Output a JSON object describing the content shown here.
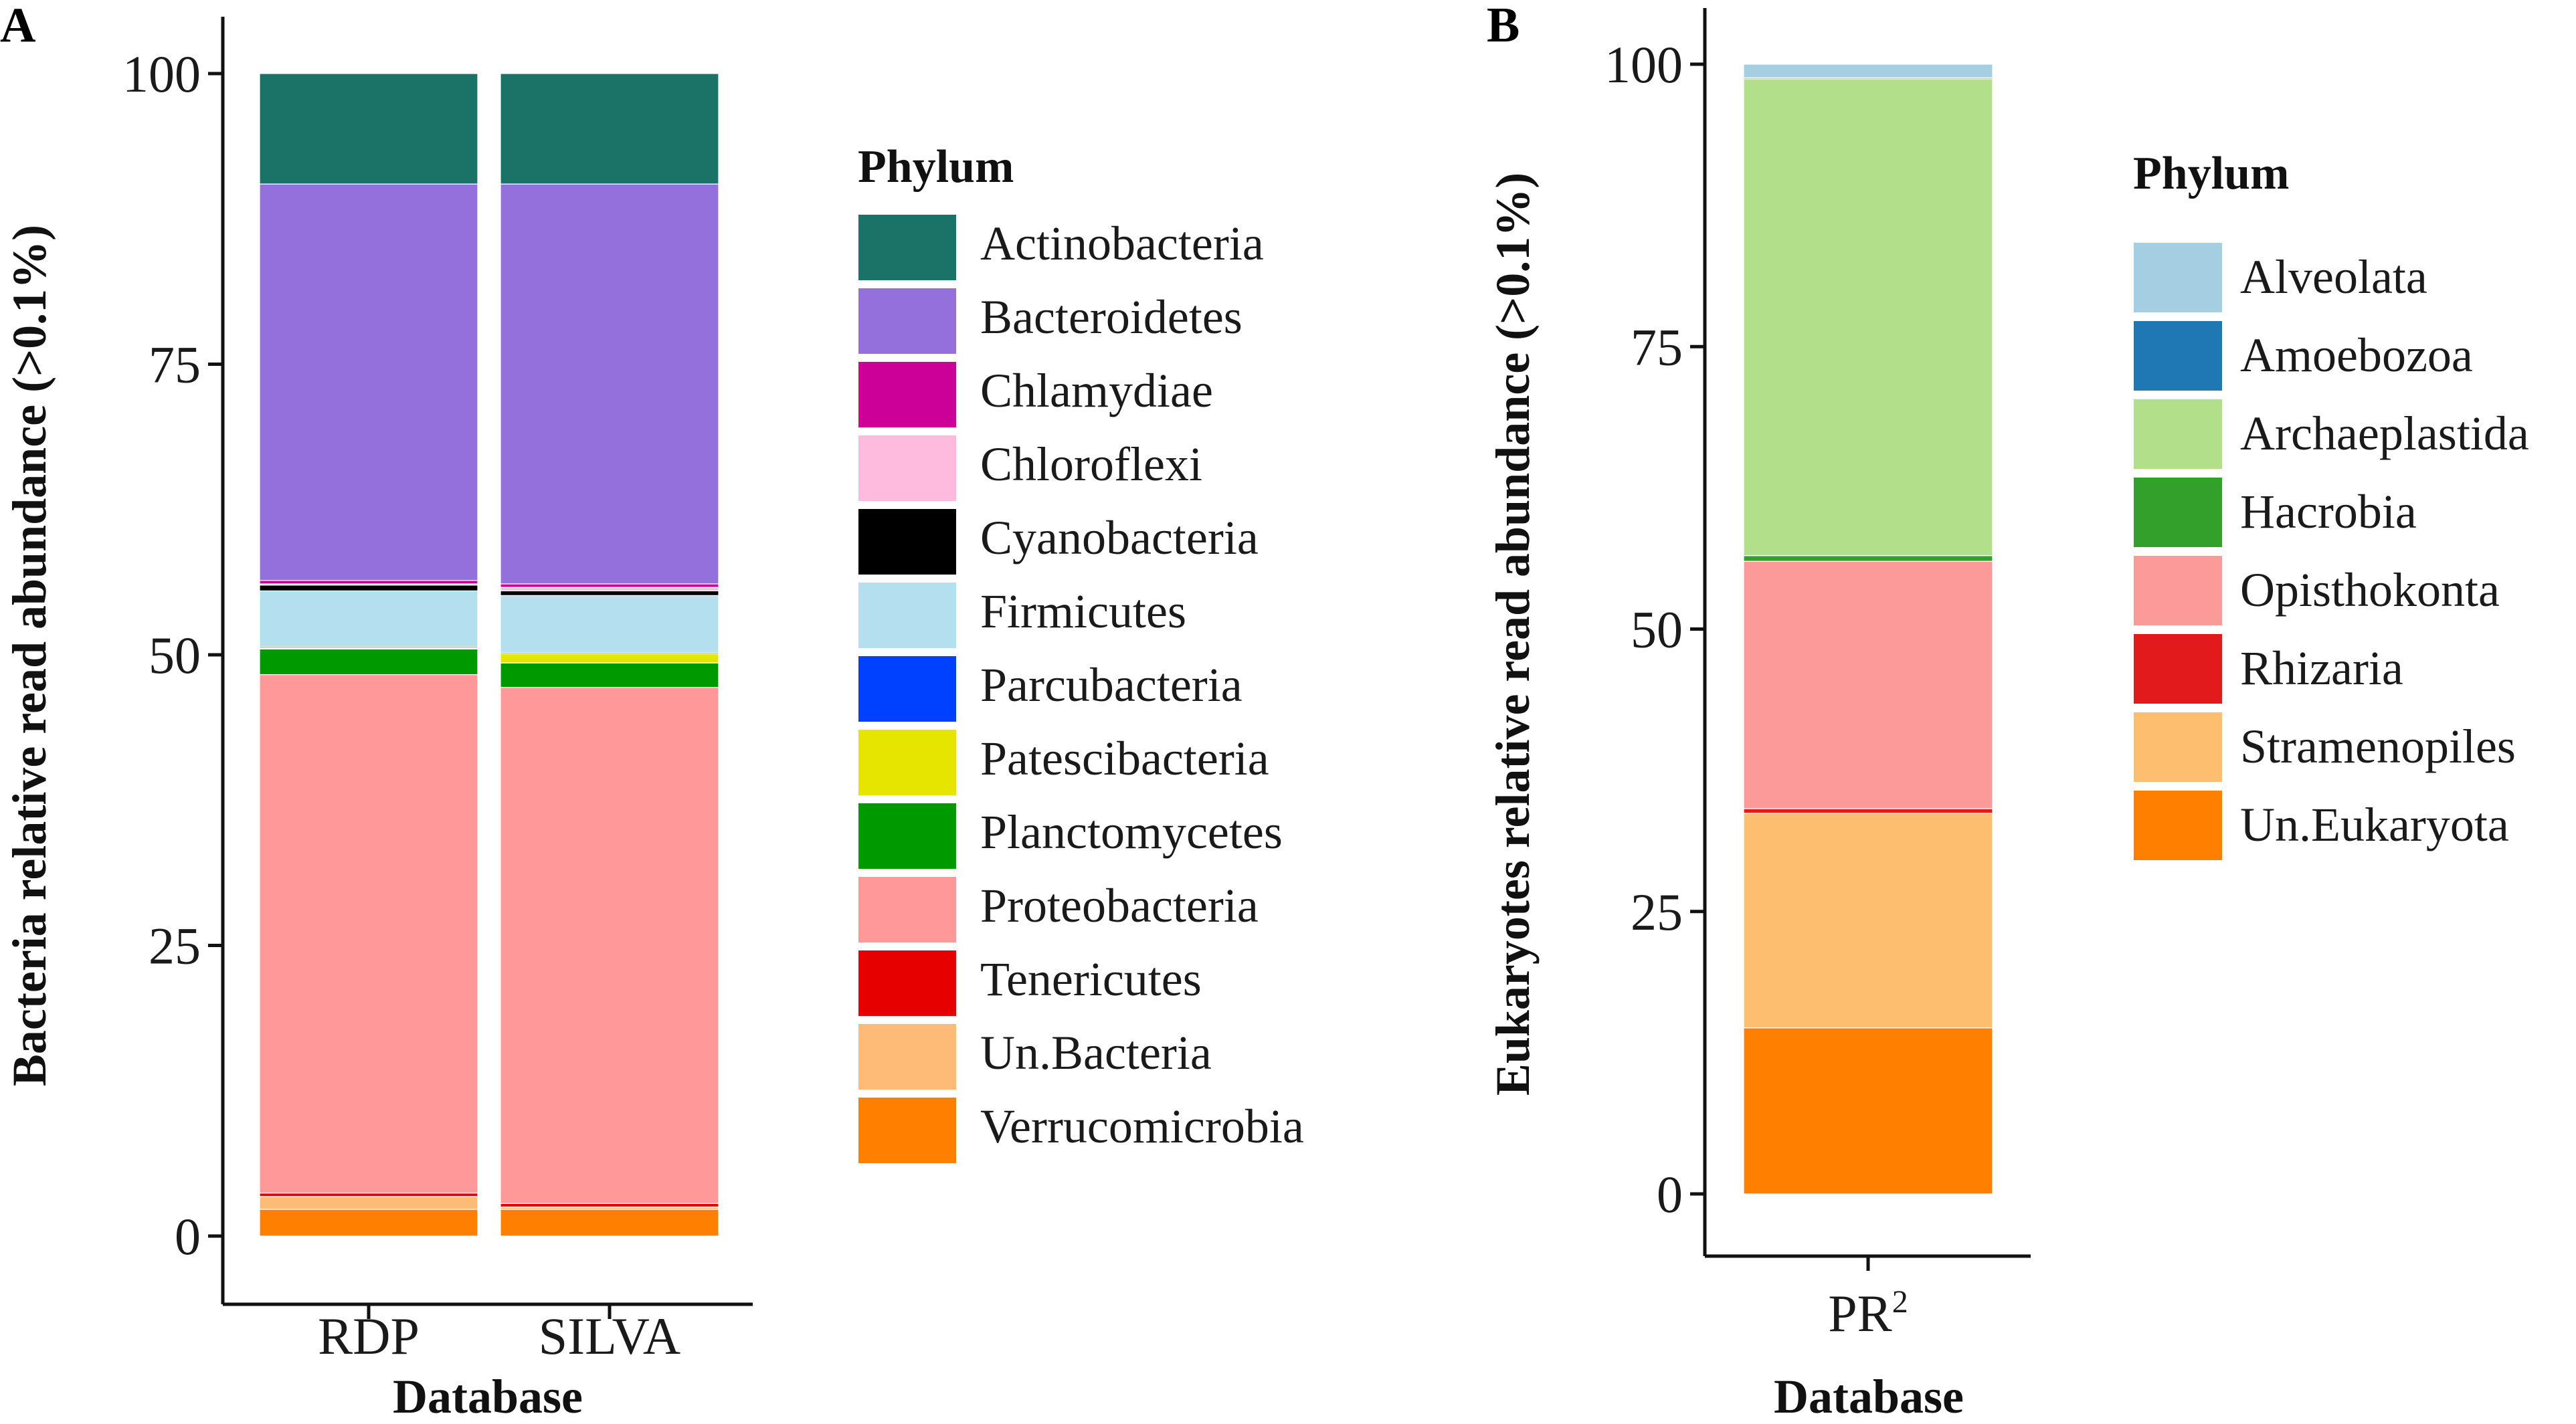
{
  "chart_data": [
    {
      "type": "bar",
      "stacked": true,
      "panel_label": "A",
      "xlabel": "Database",
      "ylabel": "Bacteria relative read abundance (>0.1%)",
      "ylim": [
        0,
        100
      ],
      "yticks": [
        0,
        25,
        50,
        75,
        100
      ],
      "categories": [
        "RDP",
        "SILVA"
      ],
      "legend": {
        "title": "Phylum",
        "position": "right"
      },
      "series": [
        {
          "name": "Actinobacteria",
          "color": "#1b7367",
          "values": [
            9.5,
            9.5
          ]
        },
        {
          "name": "Bacteroidetes",
          "color": "#9370db",
          "values": [
            34.1,
            34.4
          ]
        },
        {
          "name": "Chlamydiae",
          "color": "#cc0099",
          "values": [
            0.3,
            0.3
          ]
        },
        {
          "name": "Chloroflexi",
          "color": "#ffbbdd",
          "values": [
            0.1,
            0.3
          ]
        },
        {
          "name": "Cyanobacteria",
          "color": "#000000",
          "values": [
            0.5,
            0.4
          ]
        },
        {
          "name": "Firmicutes",
          "color": "#b3dfee",
          "values": [
            4.8,
            4.9
          ]
        },
        {
          "name": "Parcubacteria",
          "color": "#0040ff",
          "values": [
            0.1,
            0.1
          ]
        },
        {
          "name": "Patescibacteria",
          "color": "#e5e500",
          "values": [
            0.1,
            0.8
          ]
        },
        {
          "name": "Planctomycetes",
          "color": "#009900",
          "values": [
            2.2,
            2.1
          ]
        },
        {
          "name": "Proteobacteria",
          "color": "#ff9999",
          "values": [
            44.6,
            44.4
          ]
        },
        {
          "name": "Tenericutes",
          "color": "#e60000",
          "values": [
            0.3,
            0.3
          ]
        },
        {
          "name": "Un.Bacteria",
          "color": "#fdbb77",
          "values": [
            1.1,
            0.2
          ]
        },
        {
          "name": "Verrucomicrobia",
          "color": "#ff8000",
          "values": [
            2.3,
            2.3
          ]
        }
      ]
    },
    {
      "type": "bar",
      "stacked": true,
      "panel_label": "B",
      "xlabel": "Database",
      "ylabel": "Eukaryotes relative read abundance (>0.1%)",
      "ylim": [
        0,
        100
      ],
      "yticks": [
        0,
        25,
        50,
        75,
        100
      ],
      "categories": [
        "PR2"
      ],
      "category_display": {
        "base": "PR",
        "sup": "2"
      },
      "legend": {
        "title": "Phylum",
        "position": "right"
      },
      "series": [
        {
          "name": "Alveolata",
          "color": "#a6cee3",
          "values": [
            1.2
          ]
        },
        {
          "name": "Amoebozoa",
          "color": "#1f78b4",
          "values": [
            0.1
          ]
        },
        {
          "name": "Archaeplastida",
          "color": "#b2df8a",
          "values": [
            42.2
          ]
        },
        {
          "name": "Hacrobia",
          "color": "#33a02c",
          "values": [
            0.5
          ]
        },
        {
          "name": "Opisthokonta",
          "color": "#fb9a99",
          "values": [
            21.9
          ]
        },
        {
          "name": "Rhizaria",
          "color": "#e31a1c",
          "values": [
            0.4
          ]
        },
        {
          "name": "Stramenopiles",
          "color": "#fdbf6f",
          "values": [
            19.0
          ]
        },
        {
          "name": "Un.Eukaryota",
          "color": "#ff7f00",
          "values": [
            14.7
          ]
        }
      ]
    }
  ]
}
